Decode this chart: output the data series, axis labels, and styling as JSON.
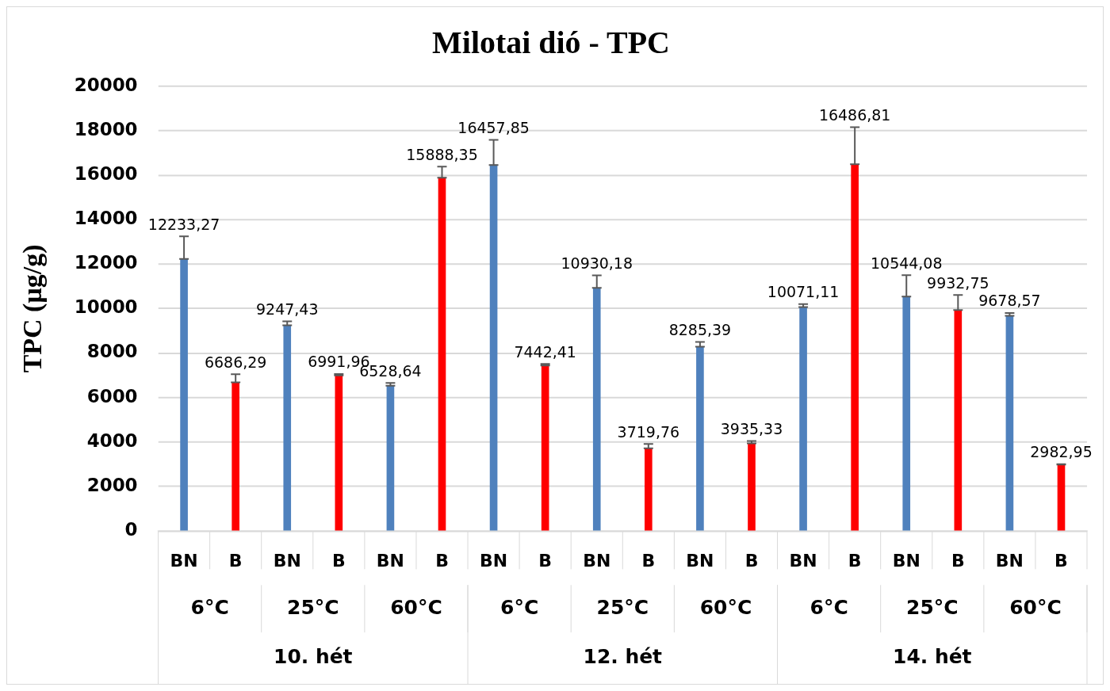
{
  "chart_data": {
    "type": "bar",
    "title": "Milotai dió - TPC",
    "ylabel": "TPC (µg/g)",
    "categories": [
      "BN",
      "B",
      "BN",
      "B",
      "BN",
      "B",
      "BN",
      "B",
      "BN",
      "B",
      "BN",
      "B",
      "BN",
      "B",
      "BN",
      "B",
      "BN",
      "B"
    ],
    "values": [
      12233.27,
      6686.29,
      9247.43,
      6991.96,
      6528.64,
      15888.35,
      16457.85,
      7442.41,
      10930.18,
      3719.76,
      8285.39,
      3935.33,
      10071.11,
      16486.81,
      10544.08,
      9932.75,
      9678.57,
      2982.95
    ],
    "colors": [
      "#4f81bd",
      "#ff0000",
      "#4f81bd",
      "#ff0000",
      "#4f81bd",
      "#ff0000",
      "#4f81bd",
      "#ff0000",
      "#4f81bd",
      "#ff0000",
      "#4f81bd",
      "#ff0000",
      "#4f81bd",
      "#ff0000",
      "#4f81bd",
      "#ff0000",
      "#4f81bd",
      "#ff0000"
    ],
    "errors": [
      [
        12233.27,
        13250
      ],
      [
        6686.29,
        7050
      ],
      [
        9247.43,
        9430
      ],
      [
        6991.96,
        7060
      ],
      [
        6528.64,
        6660
      ],
      [
        15888.35,
        16380
      ],
      [
        16457.85,
        17590
      ],
      [
        7442.41,
        7510
      ],
      [
        10930.18,
        11490
      ],
      [
        3719.76,
        3910
      ],
      [
        8285.39,
        8500
      ],
      [
        3935.33,
        4050
      ],
      [
        10071.11,
        10200
      ],
      [
        16486.81,
        18160
      ],
      [
        10544.08,
        11500
      ],
      [
        9932.75,
        10610
      ],
      [
        9678.57,
        9800
      ],
      [
        2982.95,
        3000
      ]
    ],
    "value_labels": [
      "12233,27",
      "6686,29",
      "9247,43",
      "6991,96",
      "6528,64",
      "15888,35",
      "16457,85",
      "7442,41",
      "10930,18",
      "3719,76",
      "8285,39",
      "3935,33",
      "10071,11",
      "16486,81",
      "10544,08",
      "9932,75",
      "9678,57",
      "2982,95"
    ],
    "annotations": [
      "6°C",
      "25°C",
      "60°C",
      "6°C",
      "25°C",
      "60°C",
      "6°C",
      "25°C",
      "60°C",
      "10. hét",
      "12. hét",
      "14. hét"
    ],
    "ylim": [
      0,
      20000
    ],
    "yticks": [
      0,
      2000,
      4000,
      6000,
      8000,
      10000,
      12000,
      14000,
      16000,
      18000,
      20000
    ],
    "grid": "y",
    "legend": false
  }
}
